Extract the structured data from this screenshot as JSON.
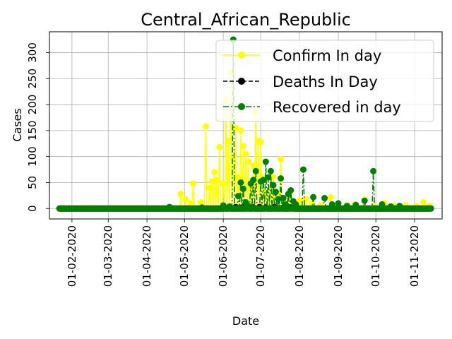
{
  "chart_data": {
    "type": "line",
    "title": "Central_African_Republic",
    "xlabel": "Date",
    "ylabel": "Cases",
    "x_range": [
      "2020-01-22",
      "2020-11-14"
    ],
    "xlim": [
      "2020-01-14",
      "2020-11-23"
    ],
    "ylim": [
      -20,
      340
    ],
    "grid": true,
    "legend_position": "top-right",
    "x_ticks": [
      "01-02-2020",
      "01-03-2020",
      "01-04-2020",
      "01-05-2020",
      "01-06-2020",
      "01-07-2020",
      "01-08-2020",
      "01-09-2020",
      "01-10-2020",
      "01-11-2020"
    ],
    "x_tick_dates": [
      "2020-02-01",
      "2020-03-01",
      "2020-04-01",
      "2020-05-01",
      "2020-06-01",
      "2020-07-01",
      "2020-08-01",
      "2020-09-01",
      "2020-10-01",
      "2020-11-01"
    ],
    "y_ticks": [
      0,
      50,
      100,
      150,
      200,
      250,
      300
    ],
    "series": [
      {
        "name": "Confirm In day",
        "color": "#ffff00",
        "linestyle": "solid",
        "marker": "circle",
        "points": [
          [
            "2020-04-28",
            28
          ],
          [
            "2020-05-02",
            18
          ],
          [
            "2020-05-06",
            10
          ],
          [
            "2020-05-08",
            48
          ],
          [
            "2020-05-14",
            12
          ],
          [
            "2020-05-18",
            158
          ],
          [
            "2020-05-21",
            40
          ],
          [
            "2020-05-23",
            52
          ],
          [
            "2020-05-25",
            70
          ],
          [
            "2020-05-27",
            55
          ],
          [
            "2020-05-29",
            118
          ],
          [
            "2020-06-01",
            48
          ],
          [
            "2020-06-03",
            210
          ],
          [
            "2020-06-05",
            130
          ],
          [
            "2020-06-07",
            262
          ],
          [
            "2020-06-09",
            98
          ],
          [
            "2020-06-11",
            155
          ],
          [
            "2020-06-13",
            60
          ],
          [
            "2020-06-15",
            150
          ],
          [
            "2020-06-17",
            120
          ],
          [
            "2020-06-19",
            105
          ],
          [
            "2020-06-21",
            90
          ],
          [
            "2020-06-23",
            38
          ],
          [
            "2020-06-25",
            82
          ],
          [
            "2020-06-27",
            185
          ],
          [
            "2020-06-29",
            130
          ],
          [
            "2020-07-01",
            128
          ],
          [
            "2020-07-03",
            60
          ],
          [
            "2020-07-05",
            30
          ],
          [
            "2020-07-07",
            22
          ],
          [
            "2020-07-09",
            40
          ],
          [
            "2020-07-11",
            60
          ],
          [
            "2020-07-13",
            18
          ],
          [
            "2020-07-15",
            28
          ],
          [
            "2020-07-17",
            95
          ],
          [
            "2020-07-20",
            12
          ],
          [
            "2020-07-23",
            24
          ],
          [
            "2020-07-27",
            8
          ],
          [
            "2020-08-01",
            15
          ],
          [
            "2020-08-06",
            18
          ],
          [
            "2020-08-11",
            10
          ],
          [
            "2020-08-18",
            6
          ],
          [
            "2020-08-26",
            22
          ],
          [
            "2020-08-31",
            8
          ],
          [
            "2020-09-08",
            6
          ],
          [
            "2020-09-14",
            8
          ],
          [
            "2020-09-22",
            18
          ],
          [
            "2020-09-30",
            4
          ],
          [
            "2020-10-08",
            10
          ],
          [
            "2020-10-15",
            5
          ],
          [
            "2020-10-25",
            6
          ],
          [
            "2020-11-03",
            4
          ],
          [
            "2020-11-08",
            12
          ],
          [
            "2020-11-13",
            5
          ]
        ]
      },
      {
        "name": "Deaths In Day",
        "color": "#000000",
        "linestyle": "dashed",
        "marker": "circle",
        "points": [
          [
            "2020-06-02",
            1
          ],
          [
            "2020-06-06",
            2
          ],
          [
            "2020-06-11",
            3
          ],
          [
            "2020-06-16",
            2
          ],
          [
            "2020-06-19",
            8
          ],
          [
            "2020-06-21",
            4
          ],
          [
            "2020-06-25",
            2
          ],
          [
            "2020-06-30",
            3
          ],
          [
            "2020-07-05",
            2
          ],
          [
            "2020-07-12",
            3
          ],
          [
            "2020-07-18",
            1
          ],
          [
            "2020-07-25",
            2
          ]
        ]
      },
      {
        "name": "Recovered in day",
        "color": "#008000",
        "linestyle": "dashdot",
        "marker": "circle",
        "points": [
          [
            "2020-04-19",
            3
          ],
          [
            "2020-05-15",
            2
          ],
          [
            "2020-06-01",
            6
          ],
          [
            "2020-06-06",
            4
          ],
          [
            "2020-06-09",
            325
          ],
          [
            "2020-06-11",
            0
          ],
          [
            "2020-06-13",
            24
          ],
          [
            "2020-06-15",
            50
          ],
          [
            "2020-06-17",
            38
          ],
          [
            "2020-06-19",
            12
          ],
          [
            "2020-06-21",
            5
          ],
          [
            "2020-06-23",
            48
          ],
          [
            "2020-06-25",
            55
          ],
          [
            "2020-06-27",
            72
          ],
          [
            "2020-06-29",
            0
          ],
          [
            "2020-07-01",
            52
          ],
          [
            "2020-07-03",
            55
          ],
          [
            "2020-07-05",
            90
          ],
          [
            "2020-07-07",
            60
          ],
          [
            "2020-07-09",
            72
          ],
          [
            "2020-07-11",
            45
          ],
          [
            "2020-07-13",
            32
          ],
          [
            "2020-07-15",
            18
          ],
          [
            "2020-07-17",
            58
          ],
          [
            "2020-07-19",
            20
          ],
          [
            "2020-07-21",
            8
          ],
          [
            "2020-07-23",
            28
          ],
          [
            "2020-07-25",
            35
          ],
          [
            "2020-07-27",
            14
          ],
          [
            "2020-07-29",
            8
          ],
          [
            "2020-08-04",
            75
          ],
          [
            "2020-08-12",
            22
          ],
          [
            "2020-08-21",
            20
          ],
          [
            "2020-08-27",
            8
          ],
          [
            "2020-09-01",
            10
          ],
          [
            "2020-09-08",
            5
          ],
          [
            "2020-09-15",
            7
          ],
          [
            "2020-09-22",
            15
          ],
          [
            "2020-09-29",
            72
          ],
          [
            "2020-10-06",
            8
          ],
          [
            "2020-10-13",
            4
          ],
          [
            "2020-10-20",
            5
          ]
        ]
      }
    ]
  }
}
